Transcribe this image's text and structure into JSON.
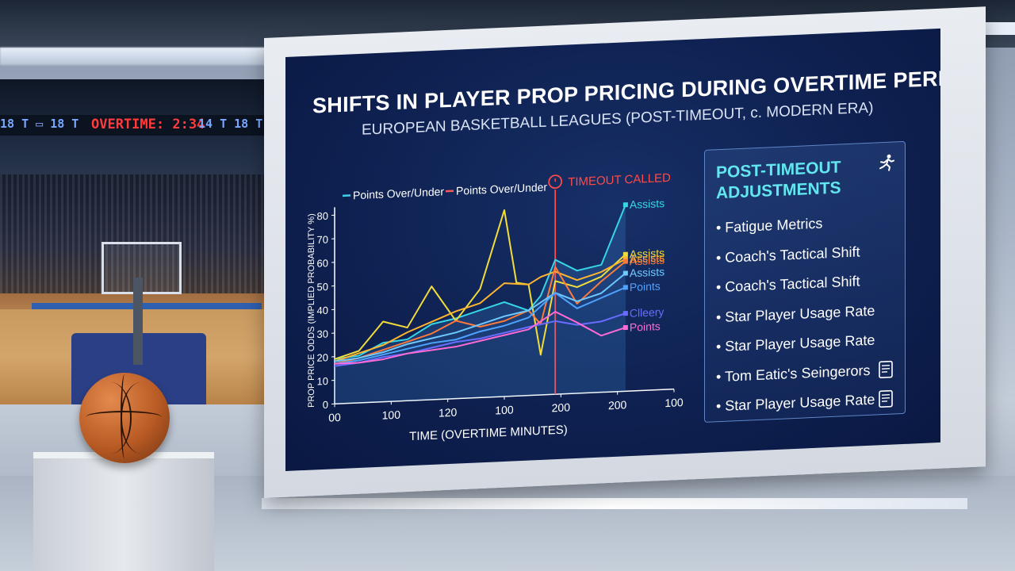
{
  "scoreboard": {
    "left_text": "18 T  ▭  18 T",
    "overtime_text": "OVERTIME: 2:34",
    "right_text": "14 T  18 T"
  },
  "screen": {
    "title": "SHIFTS IN PLAYER PROP PRICING DURING OVERTIME PERIODS",
    "subtitle": "EUROPEAN BASKETBALL LEAGUES (POST-TIMEOUT, c. MODERN ERA)"
  },
  "panel": {
    "title": "POST-TIMEOUT ADJUSTMENTS",
    "title_icon": "runner-icon",
    "items": [
      {
        "label": "• Fatigue Metrics",
        "icon": null
      },
      {
        "label": "• Coach's Tactical Shift",
        "icon": null
      },
      {
        "label": "• Coach's Tactical Shift",
        "icon": null
      },
      {
        "label": "• Star Player Usage Rate",
        "icon": null
      },
      {
        "label": "• Star Player Usage Rate",
        "icon": null
      },
      {
        "label": "• Tom Eatic's Seingerors",
        "icon": "document-icon"
      },
      {
        "label": "• Star Player Usage Rate",
        "icon": "document-icon"
      }
    ]
  },
  "chart_data": {
    "type": "line",
    "title": "",
    "xlabel": "TIME (OVERTIME MINUTES)",
    "ylabel": "PROP PRICE ODDS (IMPLIED PROBABILITY %)",
    "ylim": [
      0,
      80
    ],
    "yticks": [
      0,
      10,
      20,
      30,
      40,
      50,
      60,
      70,
      80
    ],
    "xtick_labels": [
      "00",
      "100",
      "120",
      "100",
      "200",
      "200",
      "100"
    ],
    "legend": [
      {
        "label": "Points Over/Under",
        "color": "#3fd0e8"
      },
      {
        "label": "Points Over/Under",
        "color": "#ff5a5a"
      }
    ],
    "legend_placement": "top",
    "annotation": {
      "label": "TIMEOUT CALLED",
      "x": 9.1,
      "color": "#ff4a4a"
    },
    "x_max": 14,
    "series": [
      {
        "name": "Assists",
        "color": "#37d6e6",
        "x": [
          0,
          1,
          2,
          3,
          4,
          5,
          6,
          7,
          8,
          8.5,
          9.1,
          10,
          11,
          12
        ],
        "y": [
          19,
          20,
          25,
          26,
          32,
          34,
          37,
          40,
          36,
          42,
          57,
          52,
          54,
          79
        ]
      },
      {
        "name": "Assists",
        "color": "#f2dc3a",
        "x": [
          0,
          1,
          2,
          3,
          4,
          5,
          6,
          7,
          7.5,
          8,
          8.5,
          9.1,
          10,
          11,
          12
        ],
        "y": [
          19,
          22,
          34,
          31,
          48,
          33,
          46,
          79,
          48,
          47,
          17,
          48,
          45,
          49,
          58
        ]
      },
      {
        "name": "Assists",
        "color": "#ffb52e",
        "x": [
          0,
          1,
          2,
          3,
          4,
          5,
          6,
          7,
          8,
          8.5,
          9.1,
          10,
          11,
          12
        ],
        "y": [
          18,
          21,
          24,
          29,
          33,
          37,
          40,
          48,
          47,
          50,
          52,
          48,
          51,
          56
        ]
      },
      {
        "name": "Assists",
        "color": "#ff7a3a",
        "x": [
          0,
          1,
          2,
          3,
          4,
          5,
          6,
          7,
          8,
          8.5,
          9.1,
          10,
          11,
          12
        ],
        "y": [
          17,
          19,
          22,
          25,
          28,
          33,
          30,
          32,
          36,
          30,
          54,
          38,
          47,
          55
        ]
      },
      {
        "name": "Assists",
        "color": "#6fc9ff",
        "x": [
          0,
          1,
          2,
          3,
          4,
          5,
          6,
          7,
          8,
          9.1,
          10,
          11,
          12
        ],
        "y": [
          18,
          19,
          21,
          24,
          26,
          28,
          31,
          34,
          36,
          43,
          39,
          42,
          50
        ]
      },
      {
        "name": "Points",
        "color": "#4ea3ff",
        "x": [
          0,
          1,
          2,
          3,
          4,
          5,
          6,
          7,
          8,
          9.1,
          10,
          11,
          12
        ],
        "y": [
          17,
          18,
          20,
          22,
          24,
          25,
          28,
          30,
          33,
          43,
          36,
          40,
          44
        ]
      },
      {
        "name": "Clleery",
        "color": "#6a6cff",
        "x": [
          0,
          1,
          2,
          3,
          4,
          5,
          6,
          7,
          8,
          9.1,
          10,
          11,
          12
        ],
        "y": [
          16,
          17,
          19,
          20,
          22,
          24,
          25,
          27,
          29,
          31,
          29,
          30,
          33
        ]
      },
      {
        "name": "Points",
        "color": "#ff6ad5",
        "x": [
          0,
          1,
          2,
          3,
          4,
          5,
          6,
          7,
          8,
          9.1,
          10,
          11,
          12
        ],
        "y": [
          17,
          17,
          18,
          20,
          21,
          22,
          24,
          26,
          28,
          35,
          30,
          24,
          27
        ]
      }
    ]
  }
}
